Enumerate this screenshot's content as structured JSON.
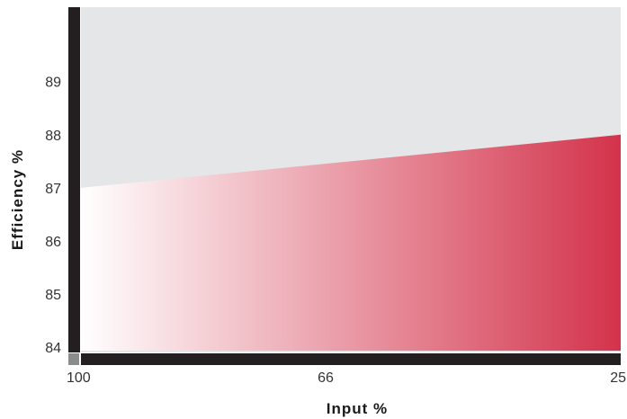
{
  "chart_data": {
    "type": "area",
    "xlabel": "Input %",
    "ylabel": "Efficiency %",
    "x_ticks": [
      "100",
      "66",
      "25"
    ],
    "y_ticks": [
      "84",
      "85",
      "86",
      "87",
      "88",
      "89"
    ],
    "ylim": [
      83.9,
      90.4
    ],
    "x": [
      100,
      25
    ],
    "series": [
      {
        "values": [
          87.0,
          88.0
        ]
      }
    ],
    "gradient": [
      "#ffffff",
      "#d3334b"
    ],
    "background_color": "#e5e6e8",
    "axis_color": "#231f20",
    "grid": false
  }
}
